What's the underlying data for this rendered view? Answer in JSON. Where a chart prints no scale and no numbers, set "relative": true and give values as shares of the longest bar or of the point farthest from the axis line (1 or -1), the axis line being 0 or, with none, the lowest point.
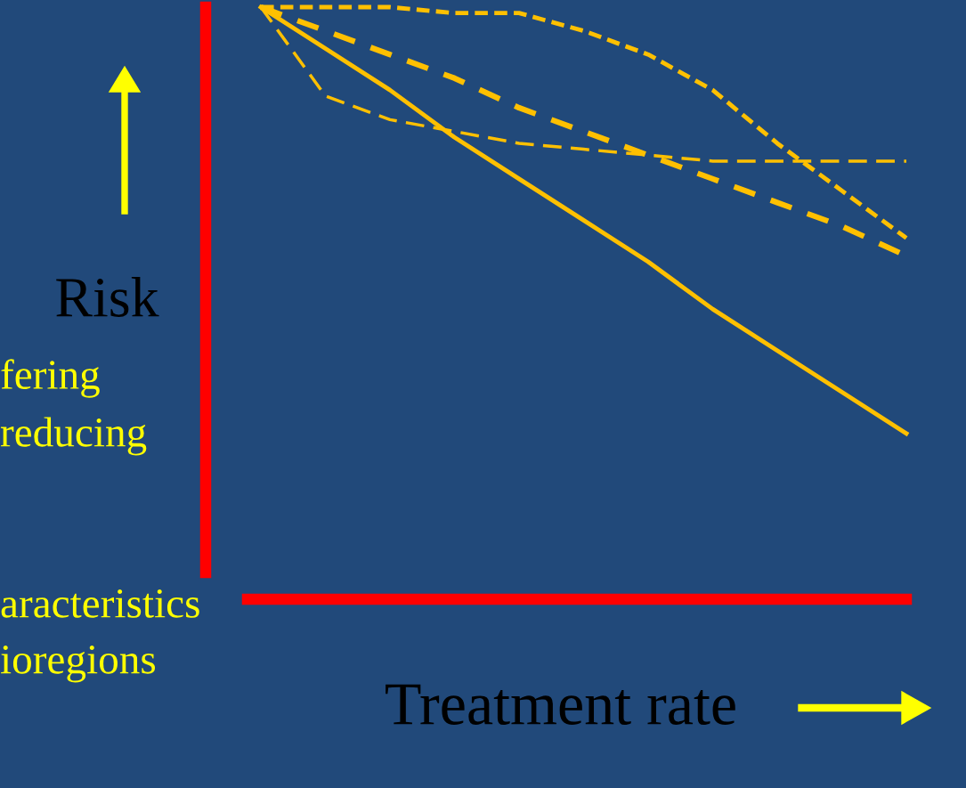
{
  "chart_data": {
    "type": "line",
    "relative": true,
    "xlabel": "Treatment rate",
    "ylabel": "Risk",
    "categories": [
      null,
      null,
      null,
      null,
      null,
      null,
      null,
      null,
      null,
      null,
      null
    ],
    "series": [
      {
        "color": "#ffc000",
        "line_style": "solid",
        "values": [
          1,
          0.93,
          0.86,
          0.78,
          0.71,
          0.64,
          0.57,
          0.49,
          0.42,
          0.35,
          0.28
        ]
      },
      {
        "color": "#ffc000",
        "line_style": "dashed",
        "values": [
          1,
          0.96,
          0.92,
          0.88,
          0.83,
          0.79,
          0.75,
          0.71,
          0.67,
          0.63,
          0.58
        ]
      },
      {
        "color": "#ffc000",
        "line_style": "dashed",
        "values": [
          1,
          1,
          1,
          0.99,
          0.99,
          0.96,
          0.92,
          0.86,
          0.77,
          0.69,
          0.61
        ]
      },
      {
        "color": "#ffc000",
        "line_style": "dashed",
        "values": [
          1,
          0.85,
          0.81,
          0.79,
          0.77,
          0.76,
          0.75,
          0.74,
          0.74,
          0.74,
          0.74
        ]
      }
    ],
    "annotations": [
      "fering",
      "reducing",
      "aracteristics",
      "ioregions"
    ],
    "legend": false
  }
}
